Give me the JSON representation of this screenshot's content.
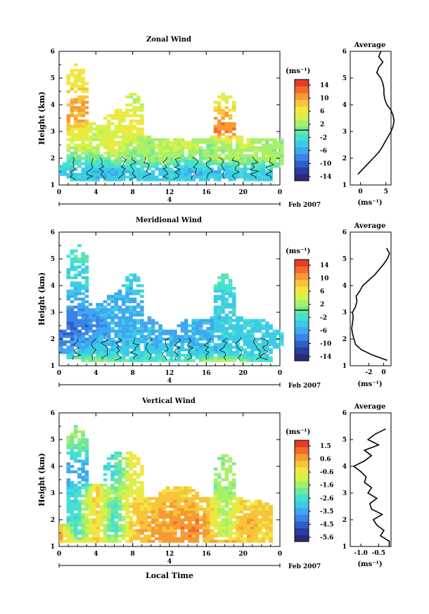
{
  "panels": [
    {
      "title": "Zonal Wind",
      "ylabel": "Height (km)",
      "colorbar_unit": "(ms⁻¹)",
      "date_label": "Feb 2007",
      "day_label": "4",
      "avg_title": "Average",
      "avg_xlabel": "(ms⁻¹)"
    },
    {
      "title": "Meridional Wind",
      "ylabel": "Height (km)",
      "colorbar_unit": "(ms⁻¹)",
      "date_label": "Feb 2007",
      "day_label": "4",
      "avg_title": "Average",
      "avg_xlabel": "(ms⁻¹)"
    },
    {
      "title": "Vertical Wind",
      "ylabel": "Height (km)",
      "colorbar_unit": "(ms⁻¹)",
      "date_label": "Feb 2007",
      "day_label": "4",
      "avg_title": "Average",
      "avg_xlabel": "(ms⁻¹)",
      "xlabel": "Local Time"
    }
  ],
  "chart_data": [
    {
      "type": "heatmap",
      "title": "Zonal Wind",
      "ylabel": "Height (km)",
      "xlabel": "",
      "x_ticks": [
        "0",
        "4",
        "8",
        "12",
        "16",
        "20",
        "0"
      ],
      "y_ticks": [
        "1",
        "2",
        "3",
        "4",
        "5",
        "6"
      ],
      "xlim": [
        0,
        24
      ],
      "ylim": [
        1,
        6
      ],
      "colorbar": {
        "label": "(ms⁻¹)",
        "ticks": [
          "14",
          "10",
          "6",
          "2",
          "-2",
          "-6",
          "-10",
          "-14"
        ],
        "range": [
          -16,
          16
        ]
      },
      "description_values": {
        "time_hr": [
          0,
          2,
          4,
          6,
          8,
          10,
          12,
          14,
          16,
          18,
          20,
          22,
          24
        ],
        "height_km": [
          1.25,
          1.5,
          2.0,
          2.5,
          3.0,
          3.5,
          4.0,
          5.0,
          6.0
        ],
        "zonal_wind_ms": [
          [
            null,
            -4,
            -4,
            -4,
            -4,
            -4,
            -4,
            -4,
            -4,
            -4,
            -4,
            -4,
            null
          ],
          [
            -4,
            -4,
            -6,
            -6,
            -4,
            -4,
            -4,
            -6,
            -4,
            -6,
            -4,
            -4,
            null
          ],
          [
            null,
            0,
            0,
            2,
            0,
            2,
            2,
            0,
            2,
            2,
            2,
            2,
            2
          ],
          [
            null,
            4,
            4,
            6,
            2,
            2,
            4,
            4,
            2,
            2,
            4,
            2,
            2
          ],
          [
            null,
            6,
            4,
            4,
            6,
            null,
            null,
            null,
            null,
            12,
            null,
            null,
            null
          ],
          [
            null,
            10,
            null,
            6,
            6,
            null,
            null,
            null,
            null,
            10,
            null,
            null,
            null
          ],
          [
            null,
            10,
            null,
            null,
            4,
            null,
            null,
            null,
            null,
            6,
            null,
            null,
            null
          ],
          [
            null,
            6,
            null,
            null,
            null,
            null,
            null,
            null,
            null,
            null,
            null,
            null,
            null
          ],
          [
            null,
            null,
            null,
            null,
            null,
            null,
            null,
            null,
            null,
            null,
            null,
            null,
            null
          ]
        ]
      },
      "average_profile": {
        "title": "Average",
        "xlabel": "(ms⁻¹)",
        "x_ticks": [
          "0",
          "5"
        ],
        "xlim": [
          -2,
          6
        ],
        "ylim": [
          1,
          6
        ],
        "height_km": [
          1.4,
          1.6,
          1.8,
          2.0,
          2.2,
          2.4,
          2.6,
          2.8,
          3.0,
          3.2,
          3.4,
          3.6,
          3.8,
          4.0,
          4.2,
          4.4,
          4.6,
          4.8,
          5.0,
          5.2,
          5.4,
          5.6,
          5.8,
          6.0,
          6.4
        ],
        "u_ms": [
          -0.5,
          0.5,
          1.5,
          2.5,
          3.5,
          4.2,
          4.8,
          5.4,
          6.0,
          6.4,
          6.6,
          6.4,
          6.0,
          5.2,
          4.8,
          4.6,
          4.6,
          4.4,
          4.0,
          3.2,
          3.6,
          4.4,
          3.6,
          4.0,
          4.0
        ]
      }
    },
    {
      "type": "heatmap",
      "title": "Meridional Wind",
      "ylabel": "Height (km)",
      "xlabel": "",
      "x_ticks": [
        "0",
        "4",
        "8",
        "12",
        "16",
        "20",
        "0"
      ],
      "y_ticks": [
        "1",
        "2",
        "3",
        "4",
        "5",
        "6"
      ],
      "xlim": [
        0,
        24
      ],
      "ylim": [
        1,
        6
      ],
      "colorbar": {
        "label": "(ms⁻¹)",
        "ticks": [
          "14",
          "10",
          "6",
          "2",
          "-2",
          "-6",
          "-10",
          "-14"
        ],
        "range": [
          -16,
          16
        ]
      },
      "description_values": {
        "time_hr": [
          0,
          2,
          4,
          6,
          8,
          10,
          12,
          14,
          16,
          18,
          20,
          22,
          24
        ],
        "height_km": [
          1.25,
          1.5,
          2.0,
          2.5,
          3.0,
          3.5,
          4.0,
          5.0,
          6.0
        ],
        "meridional_wind_ms": [
          [
            null,
            0,
            0,
            0,
            -2,
            -2,
            -2,
            -2,
            0,
            2,
            0,
            -2,
            null
          ],
          [
            -6,
            -4,
            -4,
            -4,
            -4,
            -4,
            -4,
            -4,
            -4,
            -4,
            -4,
            -4,
            null
          ],
          [
            -10,
            -8,
            -6,
            -6,
            -4,
            -6,
            -6,
            -6,
            -6,
            -4,
            -4,
            -4,
            -4
          ],
          [
            null,
            -10,
            -8,
            -6,
            -6,
            -6,
            null,
            -6,
            -6,
            -4,
            -4,
            -4,
            null
          ],
          [
            null,
            -8,
            -6,
            -6,
            -6,
            null,
            null,
            null,
            null,
            -4,
            null,
            null,
            null
          ],
          [
            null,
            -6,
            null,
            -6,
            -6,
            null,
            null,
            null,
            null,
            -4,
            null,
            null,
            null
          ],
          [
            null,
            -4,
            null,
            null,
            -4,
            null,
            null,
            null,
            null,
            -2,
            null,
            null,
            null
          ],
          [
            null,
            -2,
            null,
            null,
            null,
            null,
            null,
            null,
            null,
            null,
            null,
            null,
            null
          ],
          [
            null,
            null,
            null,
            null,
            null,
            null,
            null,
            null,
            null,
            null,
            null,
            null,
            null
          ]
        ]
      },
      "average_profile": {
        "title": "Average",
        "xlabel": "(ms⁻¹)",
        "x_ticks": [
          "-2",
          "0"
        ],
        "xlim": [
          -4.5,
          1
        ],
        "ylim": [
          1,
          6
        ],
        "height_km": [
          1.2,
          1.4,
          1.6,
          1.8,
          2.0,
          2.2,
          2.4,
          2.6,
          2.8,
          3.0,
          3.2,
          3.4,
          3.6,
          3.8,
          4.0,
          4.2,
          4.4,
          4.6,
          4.8,
          5.0,
          5.2,
          5.4
        ],
        "v_ms": [
          0.5,
          -1.5,
          -3.0,
          -3.8,
          -4.0,
          -4.2,
          -4.3,
          -4.2,
          -4.1,
          -4.2,
          -3.8,
          -3.6,
          -3.7,
          -3.2,
          -2.8,
          -2.0,
          -1.2,
          -0.6,
          0.0,
          0.5,
          0.8,
          0.4
        ]
      }
    },
    {
      "type": "heatmap",
      "title": "Vertical Wind",
      "ylabel": "Height (km)",
      "xlabel": "Local Time",
      "x_ticks": [
        "0",
        "4",
        "8",
        "12",
        "16",
        "20",
        "0"
      ],
      "y_ticks": [
        "1",
        "2",
        "3",
        "4",
        "5",
        "6"
      ],
      "xlim": [
        0,
        24
      ],
      "ylim": [
        1,
        6
      ],
      "colorbar": {
        "label": "(ms⁻¹)",
        "ticks": [
          "1.5",
          "0.6",
          "-0.6",
          "-1.6",
          "-2.6",
          "-3.5",
          "-4.5",
          "-5.6"
        ],
        "range": [
          -6,
          2
        ]
      },
      "description_values": {
        "time_hr": [
          0,
          2,
          4,
          6,
          8,
          10,
          12,
          14,
          16,
          18,
          20,
          22,
          24
        ],
        "height_km": [
          1.25,
          1.5,
          2.0,
          2.5,
          3.0,
          3.5,
          4.0,
          5.0,
          6.0
        ],
        "vertical_wind_ms": [
          [
            0.6,
            -1.6,
            0.0,
            -1.6,
            0.0,
            0.4,
            0.6,
            0.6,
            0.4,
            0.0,
            0.0,
            0.0,
            null
          ],
          [
            0.6,
            -2.6,
            0.0,
            -2.6,
            0.0,
            0.4,
            0.6,
            0.8,
            0.6,
            -1.6,
            0.4,
            0.0,
            null
          ],
          [
            null,
            -2.6,
            0.0,
            -2.6,
            0.0,
            0.4,
            0.6,
            0.8,
            0.6,
            -1.6,
            0.4,
            0.0,
            null
          ],
          [
            null,
            -2.6,
            0.0,
            -2.6,
            0.0,
            0.0,
            0.4,
            0.4,
            0.0,
            -1.6,
            0.0,
            0.0,
            null
          ],
          [
            null,
            -2.6,
            0.0,
            -1.6,
            -0.6,
            null,
            0.0,
            0.0,
            null,
            -1.6,
            null,
            null,
            null
          ],
          [
            null,
            -3.5,
            null,
            -2.6,
            -0.6,
            null,
            null,
            null,
            null,
            -1.6,
            null,
            null,
            null
          ],
          [
            null,
            -3.5,
            null,
            -2.6,
            -0.6,
            null,
            null,
            null,
            null,
            -1.6,
            null,
            null,
            null
          ],
          [
            null,
            -1.6,
            null,
            null,
            null,
            null,
            null,
            null,
            null,
            null,
            null,
            null,
            null
          ],
          [
            null,
            null,
            null,
            null,
            null,
            null,
            null,
            null,
            null,
            null,
            null,
            null,
            null
          ]
        ]
      },
      "average_profile": {
        "title": "Average",
        "xlabel": "(ms⁻¹)",
        "x_ticks": [
          "-1.0",
          "-0.5"
        ],
        "xlim": [
          -1.3,
          -0.15
        ],
        "ylim": [
          1,
          6
        ],
        "height_km": [
          1.0,
          1.2,
          1.4,
          1.6,
          1.8,
          2.0,
          2.2,
          2.4,
          2.6,
          2.8,
          3.0,
          3.2,
          3.4,
          3.6,
          3.8,
          4.0,
          4.2,
          4.4,
          4.6,
          4.8,
          5.0,
          5.2,
          5.4
        ],
        "w_ms": [
          -0.2,
          -0.2,
          -0.45,
          -0.35,
          -0.55,
          -0.65,
          -0.4,
          -0.7,
          -0.75,
          -0.55,
          -0.8,
          -0.7,
          -0.9,
          -0.85,
          -1.0,
          -1.2,
          -0.9,
          -0.7,
          -0.9,
          -0.5,
          -0.8,
          -0.6,
          -0.3
        ]
      }
    }
  ]
}
